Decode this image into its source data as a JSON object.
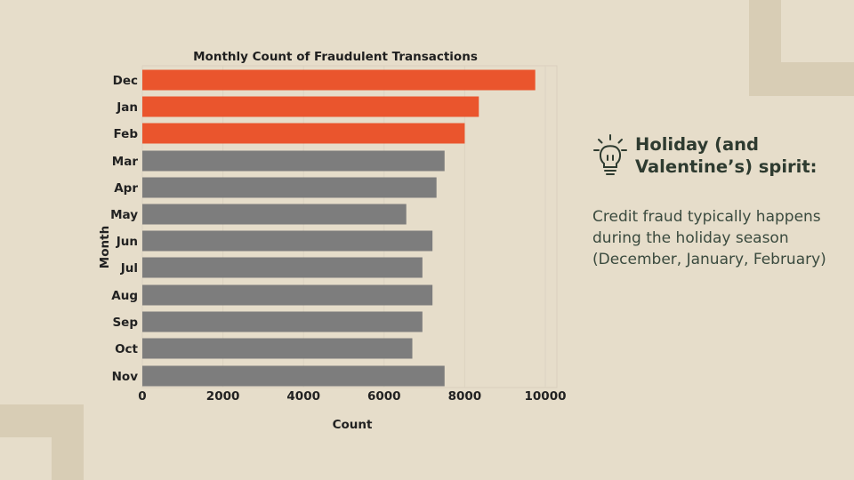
{
  "colors": {
    "background": "#e6ddca",
    "decoration": "#d8cdb5",
    "highlight_bar": "#ea552d",
    "normal_bar": "#7d7d7d",
    "title_text": "#2e3b30"
  },
  "insight": {
    "icon": "lightbulb-icon",
    "title": "Holiday (and Valentine’s) spirit:",
    "body": "Credit fraud typically happens during the holiday season (December, January, February)"
  },
  "chart_data": {
    "type": "bar",
    "orientation": "horizontal",
    "title": "Monthly Count of Fraudulent Transactions",
    "xlabel": "Count",
    "ylabel": "Month",
    "xlim": [
      0,
      10300
    ],
    "xticks": [
      "0",
      "2000",
      "4000",
      "6000",
      "8000",
      "10000"
    ],
    "categories": [
      "Dec",
      "Jan",
      "Feb",
      "Mar",
      "Apr",
      "May",
      "Jun",
      "Jul",
      "Aug",
      "Sep",
      "Oct",
      "Nov"
    ],
    "values": [
      9750,
      8350,
      8000,
      7500,
      7300,
      6550,
      7200,
      6950,
      7200,
      6950,
      6700,
      7500
    ],
    "highlighted": [
      "Dec",
      "Jan",
      "Feb"
    ],
    "grid": true
  }
}
